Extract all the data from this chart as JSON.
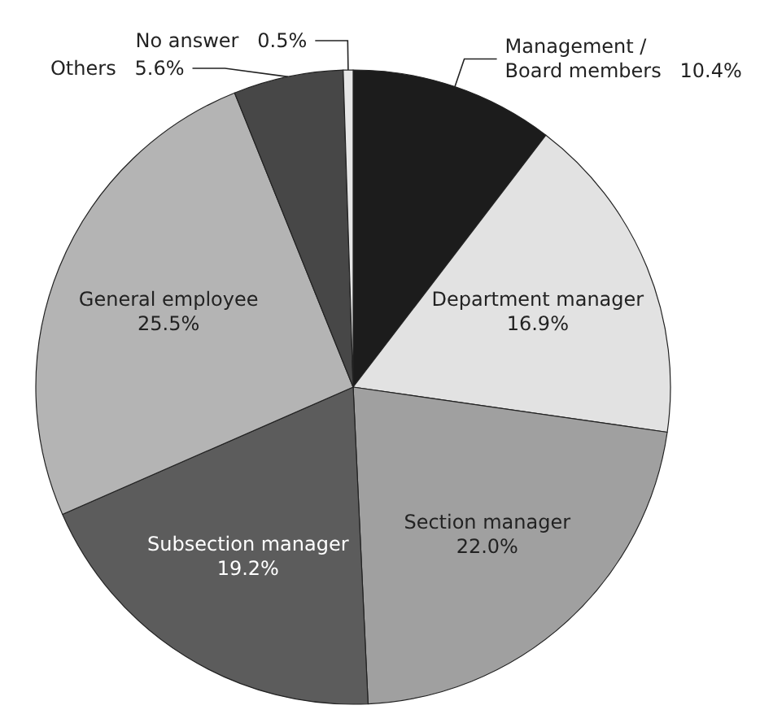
{
  "chart_data": {
    "type": "pie",
    "categories": [
      "Management /\nBoard members",
      "Department manager",
      "Section manager",
      "Subsection manager",
      "General employee",
      "Others",
      "No answer"
    ],
    "values": [
      10.4,
      16.9,
      22.0,
      19.2,
      25.5,
      5.6,
      0.5
    ],
    "value_labels": [
      "10.4%",
      "16.9%",
      "22.0%",
      "19.2%",
      "25.5%",
      "5.6%",
      "0.5%"
    ],
    "colors": [
      "#1c1c1c",
      "#e2e2e2",
      "#a0a0a0",
      "#5c5c5c",
      "#b4b4b4",
      "#474747",
      "#e6e6e6"
    ],
    "legend": false
  }
}
